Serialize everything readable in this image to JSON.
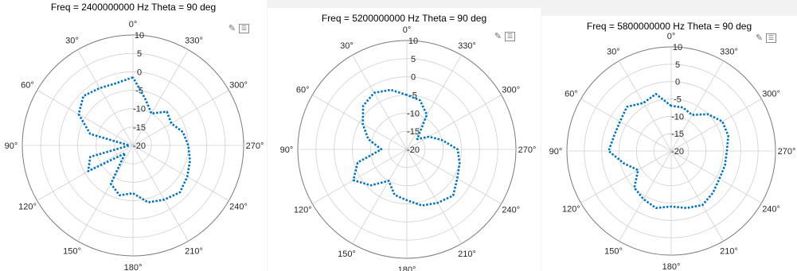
{
  "toolbar_icons": [
    "brush-icon",
    "legend-toggle-icon"
  ],
  "colors": {
    "trace": "#0072BD",
    "grid": "#d0d0d0",
    "text": "#262626",
    "panel_bg": "#ffffff",
    "page_bg": "#f2f2f2"
  },
  "chart_data": [
    {
      "type": "polar-line",
      "title": "Freq = 2400000000 Hz Theta = 90 deg",
      "rlim": [
        -20,
        10
      ],
      "r_ticks": [
        "-20",
        "-15",
        "-10",
        "-5",
        "0",
        "5",
        "10"
      ],
      "angle_ticks": [
        "0°",
        "30°",
        "60°",
        "90°",
        "120°",
        "150°",
        "180°",
        "210°",
        "240°",
        "270°",
        "300°",
        "330°"
      ],
      "theta_zero": "top",
      "theta_direction": "counterclockwise",
      "grid": true,
      "line_style": "dotted",
      "series": [
        {
          "theta": [
            0,
            15,
            30,
            45,
            60,
            75,
            90,
            105,
            120,
            135,
            150,
            165,
            180,
            195,
            210,
            225,
            240,
            255,
            270,
            285,
            300,
            315,
            330,
            345
          ],
          "r": [
            -1.5,
            -2.5,
            -2,
            -1,
            -3,
            -8,
            -19,
            -8,
            -6,
            -17,
            -8,
            -6,
            -7,
            -4,
            -3,
            -2,
            -3,
            -4,
            -5,
            -6,
            -8,
            -7,
            -10,
            -7
          ]
        }
      ]
    },
    {
      "type": "polar-line",
      "title": "Freq = 5200000000 Hz Theta = 90 deg",
      "rlim": [
        -20,
        10
      ],
      "r_ticks": [
        "-20",
        "-15",
        "-10",
        "-5",
        "0",
        "5",
        "10"
      ],
      "angle_ticks": [
        "0°",
        "30°",
        "60°",
        "90°",
        "120°",
        "150°",
        "180°",
        "210°",
        "240°",
        "270°",
        "300°",
        "330°"
      ],
      "theta_zero": "top",
      "theta_direction": "counterclockwise",
      "grid": true,
      "line_style": "dotted",
      "series": [
        {
          "theta": [
            0,
            15,
            30,
            45,
            60,
            75,
            90,
            105,
            120,
            135,
            150,
            165,
            180,
            195,
            210,
            225,
            240,
            255,
            270,
            285,
            300,
            315,
            330,
            345
          ],
          "r": [
            -5,
            -3,
            -2,
            -3,
            -6,
            -9,
            -13,
            -6,
            -3,
            -6,
            -10,
            -7,
            -6,
            -4,
            -3,
            -2,
            -4,
            -5,
            -6,
            -10,
            -13,
            -16,
            -9,
            -6
          ]
        }
      ]
    },
    {
      "type": "polar-line",
      "title": "Freq = 5800000000 Hz Theta = 90 deg",
      "rlim": [
        -20,
        10
      ],
      "r_ticks": [
        "-20",
        "-15",
        "-10",
        "-5",
        "0",
        "5",
        "10"
      ],
      "angle_ticks": [
        "0°",
        "30°",
        "60°",
        "90°",
        "120°",
        "150°",
        "180°",
        "210°",
        "240°",
        "270°",
        "300°",
        "330°"
      ],
      "theta_zero": "top",
      "theta_direction": "counterclockwise",
      "grid": true,
      "line_style": "dotted",
      "series": [
        {
          "theta": [
            0,
            15,
            30,
            45,
            60,
            75,
            90,
            105,
            120,
            135,
            150,
            165,
            180,
            195,
            210,
            225,
            240,
            255,
            270,
            285,
            300,
            315,
            330,
            345
          ],
          "r": [
            -7,
            -3,
            -4,
            -2,
            -3,
            -3,
            -2,
            -6,
            -9,
            -5,
            -4,
            -3,
            -4,
            -3,
            -2,
            -3,
            -4,
            -4,
            -4,
            -3,
            -3,
            -5,
            -8,
            -7
          ]
        }
      ]
    }
  ]
}
